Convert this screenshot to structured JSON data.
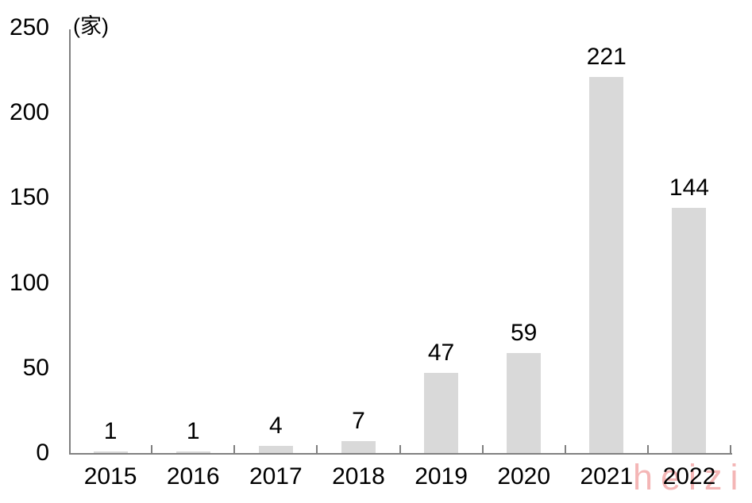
{
  "chart_data": {
    "type": "bar",
    "categories": [
      "2015",
      "2016",
      "2017",
      "2018",
      "2019",
      "2020",
      "2021",
      "2022"
    ],
    "values": [
      1,
      1,
      4,
      7,
      47,
      59,
      221,
      144
    ],
    "title": "",
    "xlabel": "",
    "ylabel": "(家)",
    "ylim": [
      0,
      250
    ],
    "yticks": [
      0,
      50,
      100,
      150,
      200,
      250
    ],
    "grid": false,
    "legend": "none",
    "bar_color": "#d9d9d9",
    "axis_color": "#808080",
    "text_color": "#000000"
  },
  "watermark": {
    "text": "heizi",
    "color": "#f4b6b6"
  }
}
